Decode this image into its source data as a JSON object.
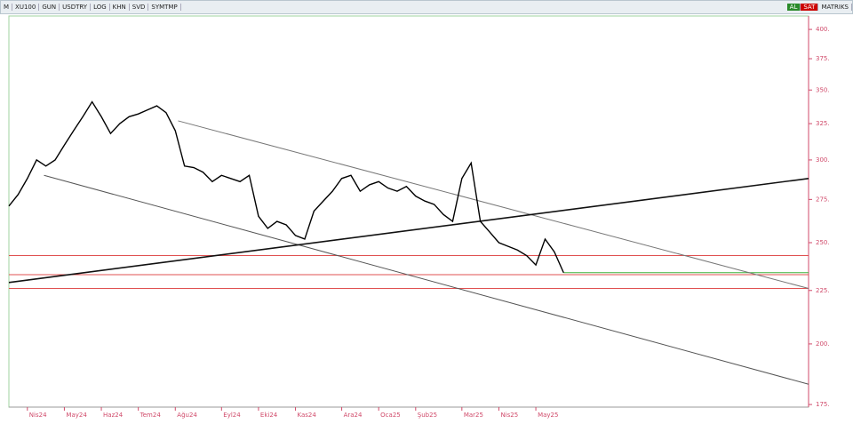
{
  "toolbar": {
    "menu": "M",
    "symbol": "XU100",
    "buttons": [
      "GUN",
      "USDTRY",
      "LOG",
      "KHN",
      "SVD",
      "SYMTMP"
    ],
    "buy": "AL",
    "sell": "SAT",
    "brand": "MATRIKS"
  },
  "chart_data": {
    "type": "line",
    "log_scale": true,
    "color": "#000000",
    "categories": [
      null,
      null,
      "Nis24",
      null,
      null,
      null,
      "May24",
      null,
      null,
      null,
      "Haz24",
      null,
      null,
      null,
      "Tem24",
      null,
      null,
      null,
      "Ağu24",
      null,
      null,
      null,
      null,
      "Eyl24",
      null,
      null,
      null,
      "Eki24",
      null,
      null,
      null,
      "Kas24",
      null,
      null,
      null,
      null,
      "Ara24",
      null,
      null,
      null,
      "Oca25",
      null,
      null,
      null,
      "Şub25",
      null,
      null,
      null,
      null,
      "Mar25",
      null,
      null,
      null,
      "Nis25",
      null,
      null,
      null,
      "May25",
      null,
      null,
      null
    ],
    "values": [
      271,
      278,
      288,
      300,
      296,
      300,
      310,
      320,
      330,
      341,
      330,
      318,
      325,
      330,
      332,
      335,
      338,
      333,
      320,
      296,
      295,
      292,
      286,
      290,
      288,
      286,
      290,
      265,
      258,
      262,
      260,
      254,
      252,
      268,
      274,
      280,
      288,
      290,
      280,
      284,
      286,
      282,
      280,
      283,
      277,
      274,
      272,
      266,
      262,
      288,
      298,
      262,
      256,
      250,
      248,
      246,
      243,
      238,
      252,
      245,
      234
    ],
    "xlim": [
      0,
      86.5
    ],
    "ylim": [
      174,
      412
    ],
    "yticks": [
      {
        "value": 175,
        "label": "175."
      },
      {
        "value": 200,
        "label": "200."
      },
      {
        "value": 225,
        "label": "225."
      },
      {
        "value": 250,
        "label": "250."
      },
      {
        "value": 275,
        "label": "275."
      },
      {
        "value": 300,
        "label": "300."
      },
      {
        "value": 325,
        "label": "325."
      },
      {
        "value": 350,
        "label": "350."
      },
      {
        "value": 375,
        "label": "375."
      },
      {
        "value": 400,
        "label": "400."
      }
    ],
    "hlines": [
      {
        "value": 243,
        "color": "#e05050"
      },
      {
        "value": 233,
        "color": "#e05050"
      },
      {
        "value": 226,
        "color": "#e05050"
      },
      {
        "value": 234,
        "color": "#3cb43c"
      }
    ],
    "trend_lines": [
      {
        "x": [
          18.3,
          86.5
        ],
        "y": [
          327,
          226
        ],
        "color": "#777777"
      },
      {
        "x": [
          3.8,
          86.5
        ],
        "y": [
          290,
          183
        ],
        "color": "#555555"
      },
      {
        "x": [
          0,
          86.5
        ],
        "y": [
          229,
          288
        ],
        "color": "#111111"
      }
    ]
  }
}
